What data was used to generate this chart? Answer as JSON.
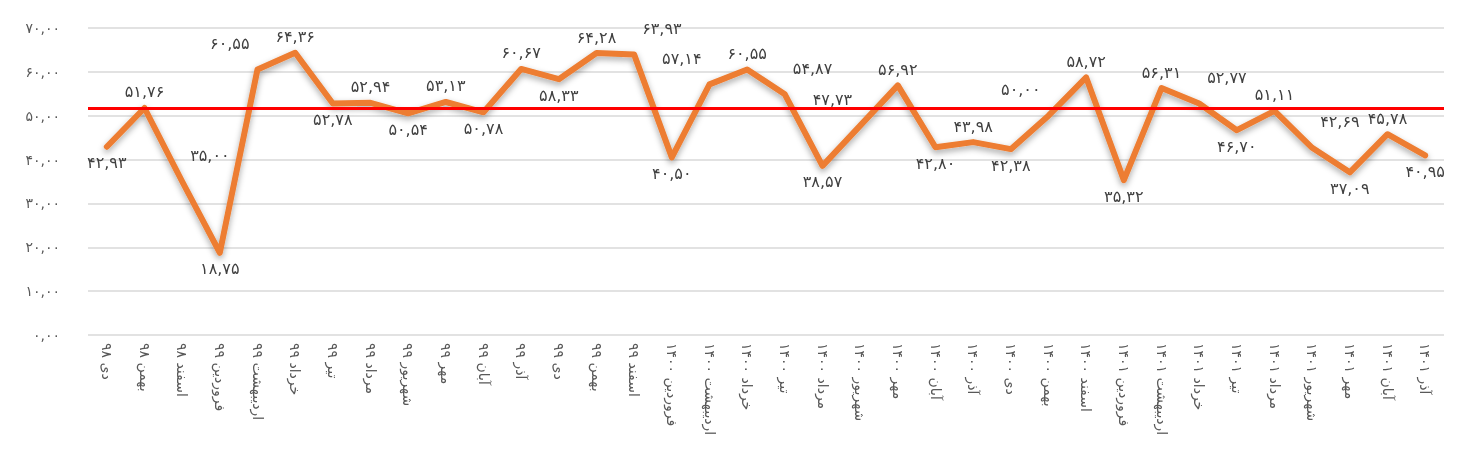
{
  "chart_data": {
    "type": "line",
    "categories": [
      "دی ۹۸",
      "بهمن ۹۸",
      "اسفند ۹۸",
      "فروردین ۹۹",
      "اردیبهشت ۹۹",
      "خرداد ۹۹",
      "تیر ۹۹",
      "مرداد ۹۹",
      "شهریور ۹۹",
      "مهر ۹۹",
      "آبان ۹۹",
      "آذر ۹۹",
      "دی ۹۹",
      "بهمن ۹۹",
      "اسفند ۹۹",
      "فروردین ۱۴۰۰",
      "اردیبهشت ۱۴۰۰",
      "خرداد ۱۴۰۰",
      "تیر ۱۴۰۰",
      "مرداد ۱۴۰۰",
      "شهریور ۱۴۰۰",
      "مهر ۱۴۰۰",
      "آبان ۱۴۰۰",
      "آذر ۱۴۰۰",
      "دی ۱۴۰۰",
      "بهمن ۱۴۰۰",
      "اسفند ۱۴۰۰",
      "فروردین ۱۴۰۱",
      "اردیبهشت ۱۴۰۱",
      "خرداد ۱۴۰۱",
      "تیر ۱۴۰۱",
      "مرداد ۱۴۰۱",
      "شهریور ۱۴۰۱",
      "مهر ۱۴۰۱",
      "آبان ۱۴۰۱",
      "آذر ۱۴۰۱"
    ],
    "series": [
      {
        "color": "#ed7d31",
        "values": [
          42.93,
          51.76,
          35.0,
          18.75,
          60.55,
          64.36,
          52.78,
          52.94,
          50.54,
          53.13,
          50.78,
          60.67,
          58.33,
          64.28,
          63.93,
          40.5,
          57.14,
          60.55,
          54.87,
          38.57,
          47.73,
          56.92,
          42.8,
          43.98,
          42.38,
          50.0,
          58.72,
          35.32,
          56.31,
          52.77,
          46.7,
          51.11,
          42.69,
          37.09,
          45.78,
          40.95
        ],
        "value_labels": [
          "۴۲,۹۳",
          "۵۱,۷۶",
          "۳۵,۰۰",
          "۱۸,۷۵",
          "۶۰,۵۵",
          "۶۴,۳۶",
          "۵۲,۷۸",
          "۵۲,۹۴",
          "۵۰,۵۴",
          "۵۳,۱۳",
          "۵۰,۷۸",
          "۶۰,۶۷",
          "۵۸,۳۳",
          "۶۴,۲۸",
          "۶۳,۹۳",
          "۴۰,۵۰",
          "۵۷,۱۴",
          "۶۰,۵۵",
          "۵۴,۸۷",
          "۳۸,۵۷",
          "۴۷,۷۳",
          "۵۶,۹۲",
          "۴۲,۸۰",
          "۴۳,۹۸",
          "۴۲,۳۸",
          "۵۰,۰۰",
          "۵۸,۷۲",
          "۳۵,۳۲",
          "۵۶,۳۱",
          "۵۲,۷۷",
          "۴۶,۷۰",
          "۵۱,۱۱",
          "۴۲,۶۹",
          "۳۷,۰۹",
          "۴۵,۷۸",
          "۴۰,۹۵"
        ]
      }
    ],
    "ylim": [
      0,
      70
    ],
    "yticks": [
      {
        "value": 0,
        "label": "۰,۰۰"
      },
      {
        "value": 10,
        "label": "۱۰,۰۰"
      },
      {
        "value": 20,
        "label": "۲۰,۰۰"
      },
      {
        "value": 30,
        "label": "۳۰,۰۰"
      },
      {
        "value": 40,
        "label": "۴۰,۰۰"
      },
      {
        "value": 50,
        "label": "۵۰,۰۰"
      },
      {
        "value": 60,
        "label": "۶۰,۰۰"
      },
      {
        "value": 70,
        "label": "۷۰,۰۰"
      }
    ],
    "grid": "y",
    "marker": "none",
    "line_style": "solid",
    "ref_lines": [
      {
        "axis": "y",
        "value": 51.8,
        "color": "#ff0000",
        "line_style": "solid"
      }
    ]
  }
}
